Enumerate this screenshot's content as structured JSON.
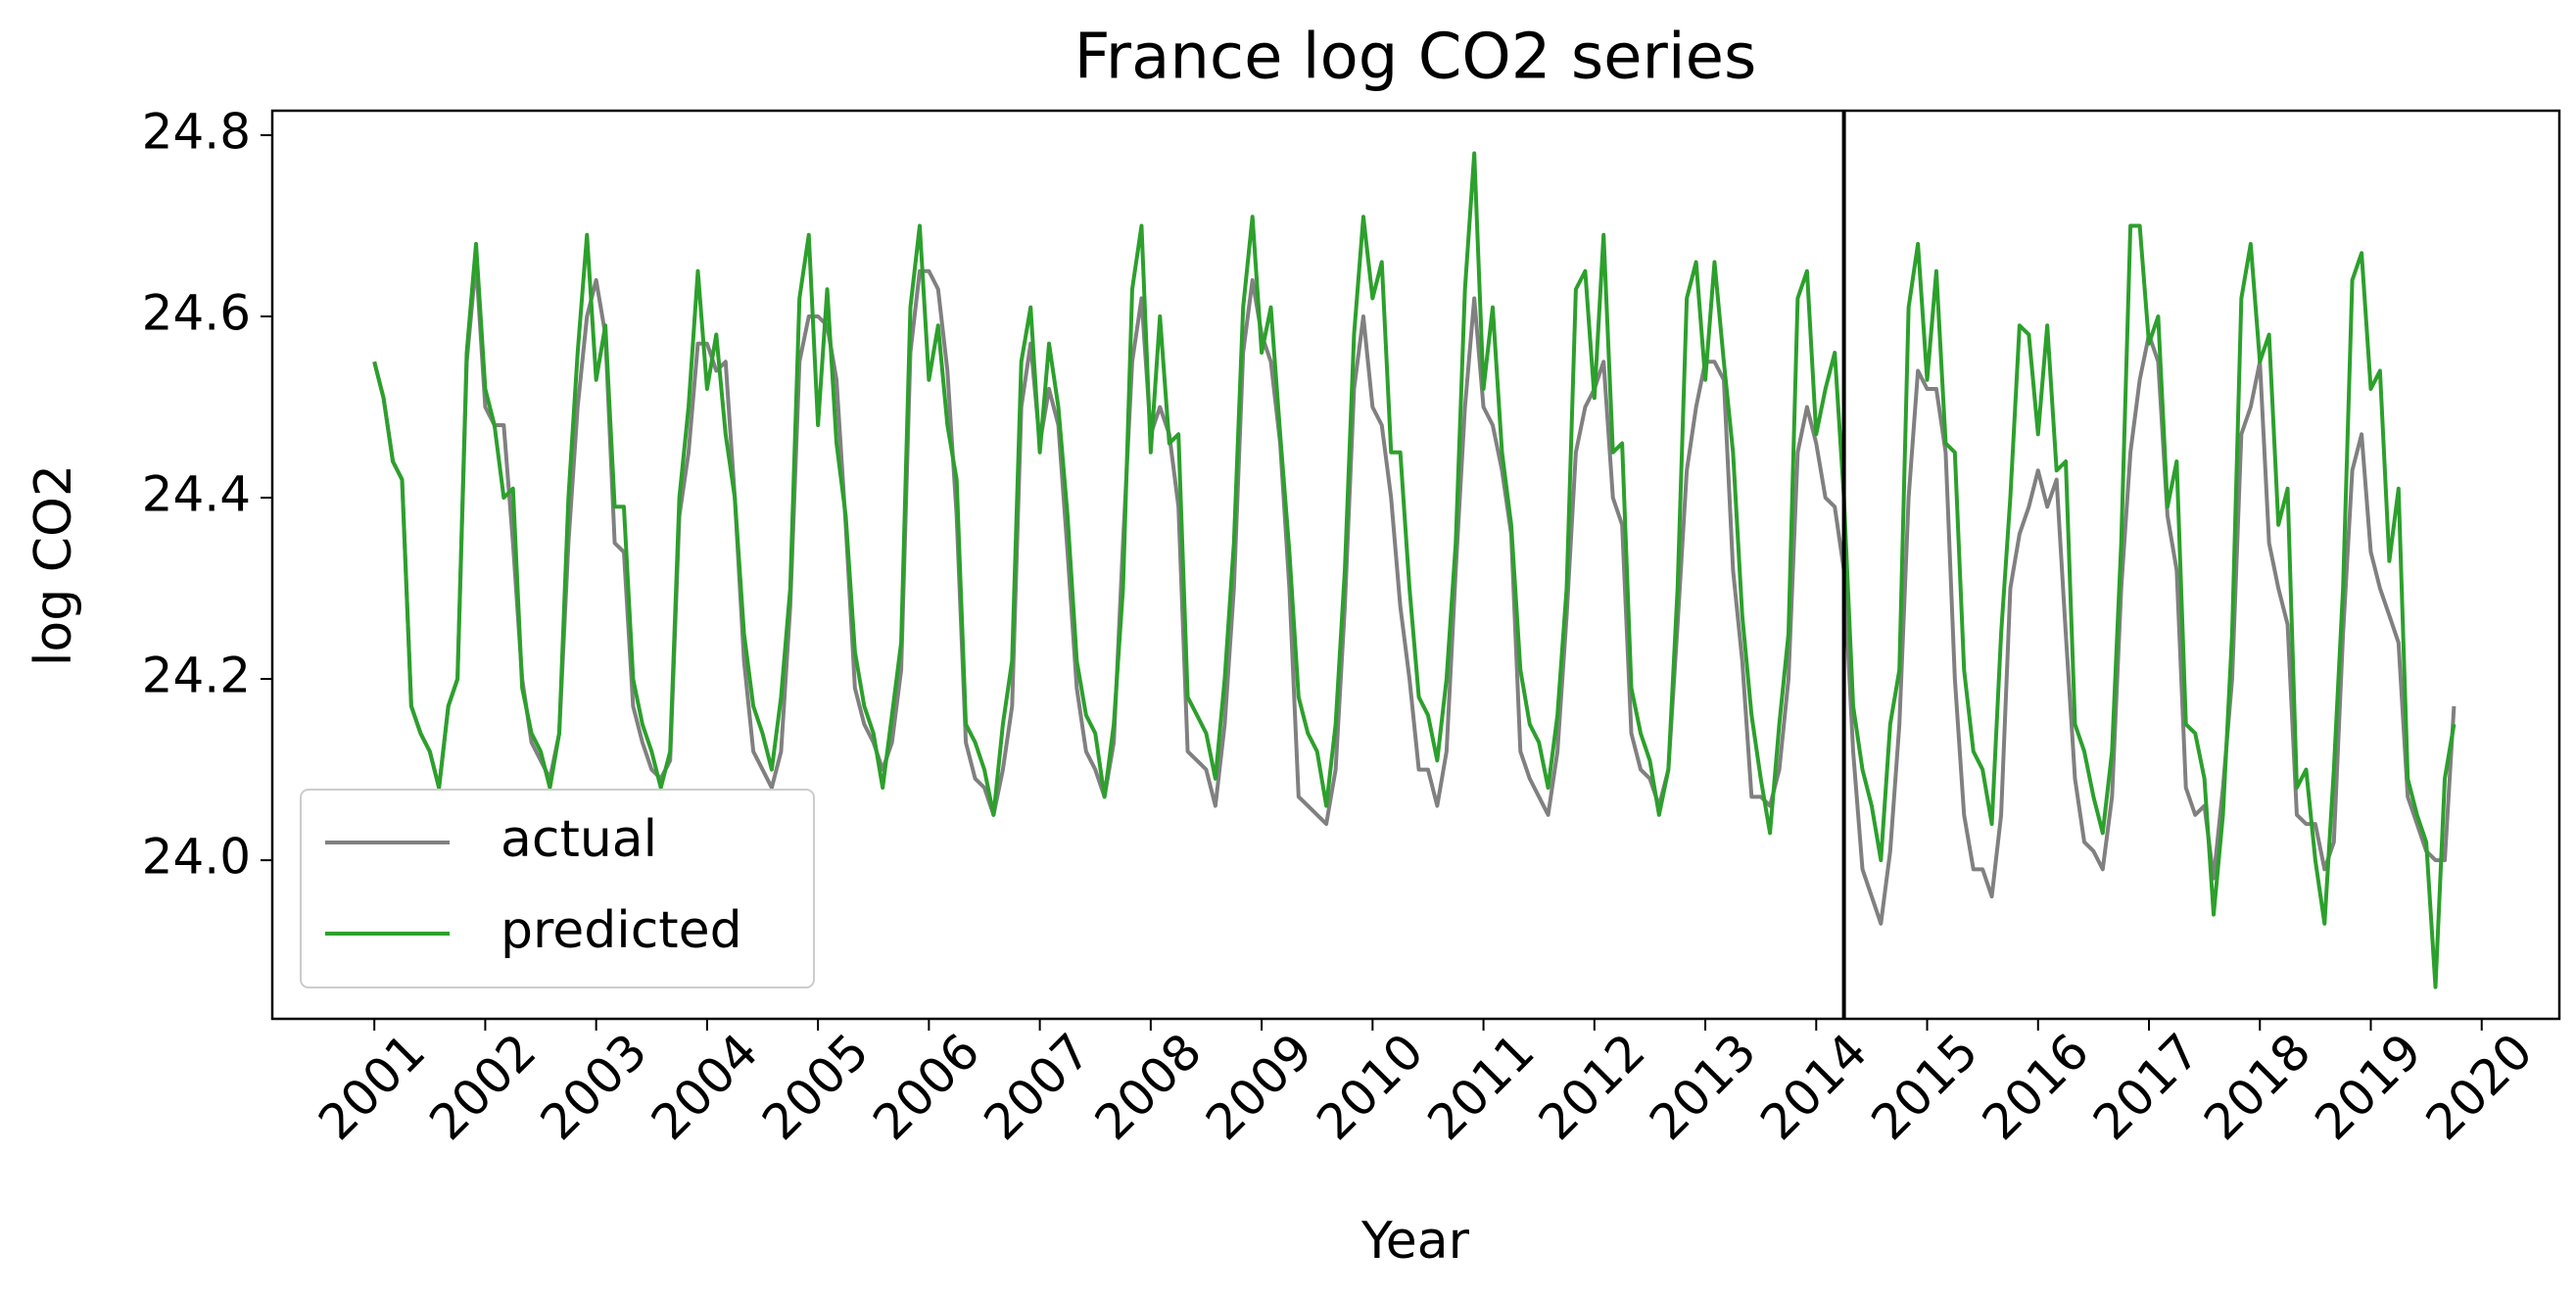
{
  "chart_data": {
    "type": "line",
    "title": "France log CO2 series",
    "x_label": "Year",
    "y_label": "log CO2",
    "x": [
      2001,
      2001.083,
      2001.167,
      2001.25,
      2001.333,
      2001.417,
      2001.5,
      2001.583,
      2001.667,
      2001.75,
      2001.833,
      2001.917,
      2002,
      2002.083,
      2002.167,
      2002.25,
      2002.333,
      2002.417,
      2002.5,
      2002.583,
      2002.667,
      2002.75,
      2002.833,
      2002.917,
      2003,
      2003.083,
      2003.167,
      2003.25,
      2003.333,
      2003.417,
      2003.5,
      2003.583,
      2003.667,
      2003.75,
      2003.833,
      2003.917,
      2004,
      2004.083,
      2004.167,
      2004.25,
      2004.333,
      2004.417,
      2004.5,
      2004.583,
      2004.667,
      2004.75,
      2004.833,
      2004.917,
      2005,
      2005.083,
      2005.167,
      2005.25,
      2005.333,
      2005.417,
      2005.5,
      2005.583,
      2005.667,
      2005.75,
      2005.833,
      2005.917,
      2006,
      2006.083,
      2006.167,
      2006.25,
      2006.333,
      2006.417,
      2006.5,
      2006.583,
      2006.667,
      2006.75,
      2006.833,
      2006.917,
      2007,
      2007.083,
      2007.167,
      2007.25,
      2007.333,
      2007.417,
      2007.5,
      2007.583,
      2007.667,
      2007.75,
      2007.833,
      2007.917,
      2008,
      2008.083,
      2008.167,
      2008.25,
      2008.333,
      2008.417,
      2008.5,
      2008.583,
      2008.667,
      2008.75,
      2008.833,
      2008.917,
      2009,
      2009.083,
      2009.167,
      2009.25,
      2009.333,
      2009.417,
      2009.5,
      2009.583,
      2009.667,
      2009.75,
      2009.833,
      2009.917,
      2010,
      2010.083,
      2010.167,
      2010.25,
      2010.333,
      2010.417,
      2010.5,
      2010.583,
      2010.667,
      2010.75,
      2010.833,
      2010.917,
      2011,
      2011.083,
      2011.167,
      2011.25,
      2011.333,
      2011.417,
      2011.5,
      2011.583,
      2011.667,
      2011.75,
      2011.833,
      2011.917,
      2012,
      2012.083,
      2012.167,
      2012.25,
      2012.333,
      2012.417,
      2012.5,
      2012.583,
      2012.667,
      2012.75,
      2012.833,
      2012.917,
      2013,
      2013.083,
      2013.167,
      2013.25,
      2013.333,
      2013.417,
      2013.5,
      2013.583,
      2013.667,
      2013.75,
      2013.833,
      2013.917,
      2014,
      2014.083,
      2014.167,
      2014.25,
      2014.333,
      2014.417,
      2014.5,
      2014.583,
      2014.667,
      2014.75,
      2014.833,
      2014.917,
      2015,
      2015.083,
      2015.167,
      2015.25,
      2015.333,
      2015.417,
      2015.5,
      2015.583,
      2015.667,
      2015.75,
      2015.833,
      2015.917,
      2016,
      2016.083,
      2016.167,
      2016.25,
      2016.333,
      2016.417,
      2016.5,
      2016.583,
      2016.667,
      2016.75,
      2016.833,
      2016.917,
      2017,
      2017.083,
      2017.167,
      2017.25,
      2017.333,
      2017.417,
      2017.5,
      2017.583,
      2017.667,
      2017.75,
      2017.833,
      2017.917,
      2018,
      2018.083,
      2018.167,
      2018.25,
      2018.333,
      2018.417,
      2018.5,
      2018.583,
      2018.667,
      2018.75,
      2018.833,
      2018.917,
      2019,
      2019.083,
      2019.167,
      2019.25,
      2019.333,
      2019.417,
      2019.5,
      2019.583,
      2019.667,
      2019.75
    ],
    "series": [
      {
        "name": "actual",
        "color": "#808080",
        "values": [
          24.55,
          24.51,
          24.44,
          24.42,
          24.17,
          24.14,
          24.12,
          24.08,
          24.17,
          24.2,
          24.55,
          24.66,
          24.5,
          24.48,
          24.48,
          24.35,
          24.2,
          24.13,
          24.11,
          24.09,
          24.14,
          24.35,
          24.5,
          24.6,
          24.64,
          24.58,
          24.35,
          24.34,
          24.17,
          24.13,
          24.1,
          24.09,
          24.11,
          24.38,
          24.45,
          24.57,
          24.57,
          24.54,
          24.55,
          24.4,
          24.22,
          24.12,
          24.1,
          24.08,
          24.12,
          24.28,
          24.55,
          24.6,
          24.6,
          24.59,
          24.53,
          24.37,
          24.19,
          24.15,
          24.13,
          24.1,
          24.13,
          24.21,
          24.56,
          24.65,
          24.65,
          24.63,
          24.54,
          24.38,
          24.13,
          24.09,
          24.08,
          24.05,
          24.1,
          24.17,
          24.5,
          24.57,
          24.46,
          24.52,
          24.48,
          24.34,
          24.19,
          24.12,
          24.1,
          24.07,
          24.13,
          24.35,
          24.55,
          24.62,
          24.47,
          24.5,
          24.47,
          24.39,
          24.12,
          24.11,
          24.1,
          24.06,
          24.15,
          24.3,
          24.56,
          24.64,
          24.58,
          24.55,
          24.46,
          24.3,
          24.07,
          24.06,
          24.05,
          24.04,
          24.1,
          24.28,
          24.52,
          24.6,
          24.5,
          24.48,
          24.4,
          24.28,
          24.2,
          24.1,
          24.1,
          24.06,
          24.12,
          24.32,
          24.5,
          24.62,
          24.5,
          24.48,
          24.43,
          24.36,
          24.12,
          24.09,
          24.07,
          24.05,
          24.12,
          24.27,
          24.45,
          24.5,
          24.52,
          24.55,
          24.4,
          24.37,
          24.14,
          24.1,
          24.09,
          24.06,
          24.1,
          24.26,
          24.43,
          24.5,
          24.55,
          24.55,
          24.53,
          24.32,
          24.22,
          24.07,
          24.07,
          24.06,
          24.1,
          24.2,
          24.45,
          24.5,
          24.46,
          24.4,
          24.39,
          24.32,
          24.12,
          23.99,
          23.96,
          23.93,
          24.01,
          24.15,
          24.4,
          24.54,
          24.52,
          24.52,
          24.45,
          24.2,
          24.05,
          23.99,
          23.99,
          23.96,
          24.05,
          24.3,
          24.36,
          24.39,
          24.43,
          24.39,
          24.42,
          24.25,
          24.09,
          24.02,
          24.01,
          23.99,
          24.07,
          24.3,
          24.45,
          24.53,
          24.58,
          24.55,
          24.38,
          24.32,
          24.08,
          24.05,
          24.06,
          23.98,
          24.08,
          24.2,
          24.47,
          24.5,
          24.55,
          24.35,
          24.3,
          24.26,
          24.05,
          24.04,
          24.04,
          23.99,
          24.02,
          24.25,
          24.43,
          24.47,
          24.34,
          24.3,
          24.27,
          24.24,
          24.07,
          24.04,
          24.01,
          24.0,
          24.0,
          24.17
        ]
      },
      {
        "name": "predicted",
        "color": "#2ca02c",
        "values": [
          24.55,
          24.51,
          24.44,
          24.42,
          24.17,
          24.14,
          24.12,
          24.08,
          24.17,
          24.2,
          24.56,
          24.68,
          24.52,
          24.48,
          24.4,
          24.41,
          24.19,
          24.14,
          24.12,
          24.08,
          24.14,
          24.4,
          24.56,
          24.69,
          24.53,
          24.59,
          24.39,
          24.39,
          24.2,
          24.15,
          24.12,
          24.08,
          24.12,
          24.4,
          24.5,
          24.65,
          24.52,
          24.58,
          24.47,
          24.4,
          24.25,
          24.17,
          24.14,
          24.1,
          24.18,
          24.3,
          24.62,
          24.69,
          24.48,
          24.63,
          24.46,
          24.38,
          24.23,
          24.17,
          24.14,
          24.08,
          24.16,
          24.24,
          24.61,
          24.7,
          24.53,
          24.59,
          24.48,
          24.42,
          24.15,
          24.13,
          24.1,
          24.05,
          24.15,
          24.22,
          24.55,
          24.61,
          24.45,
          24.57,
          24.5,
          24.38,
          24.22,
          24.16,
          24.14,
          24.07,
          24.15,
          24.3,
          24.63,
          24.7,
          24.45,
          24.6,
          24.46,
          24.47,
          24.18,
          24.16,
          24.14,
          24.09,
          24.2,
          24.35,
          24.61,
          24.71,
          24.56,
          24.61,
          24.47,
          24.34,
          24.18,
          24.14,
          24.12,
          24.06,
          24.15,
          24.32,
          24.58,
          24.71,
          24.62,
          24.66,
          24.45,
          24.45,
          24.3,
          24.18,
          24.16,
          24.11,
          24.2,
          24.35,
          24.63,
          24.78,
          24.52,
          24.61,
          24.45,
          24.37,
          24.21,
          24.15,
          24.13,
          24.08,
          24.16,
          24.3,
          24.63,
          24.65,
          24.51,
          24.69,
          24.45,
          24.46,
          24.19,
          24.14,
          24.11,
          24.05,
          24.1,
          24.3,
          24.62,
          24.66,
          24.53,
          24.66,
          24.55,
          24.45,
          24.27,
          24.16,
          24.09,
          24.03,
          24.15,
          24.25,
          24.62,
          24.65,
          24.47,
          24.52,
          24.56,
          24.4,
          24.17,
          24.1,
          24.06,
          24.0,
          24.15,
          24.21,
          24.61,
          24.68,
          24.53,
          24.65,
          24.46,
          24.45,
          24.21,
          24.12,
          24.1,
          24.04,
          24.25,
          24.4,
          24.59,
          24.58,
          24.47,
          24.59,
          24.43,
          24.44,
          24.15,
          24.12,
          24.07,
          24.03,
          24.12,
          24.35,
          24.7,
          24.7,
          24.57,
          24.6,
          24.39,
          24.44,
          24.15,
          24.14,
          24.09,
          23.94,
          24.05,
          24.25,
          24.62,
          24.68,
          24.55,
          24.58,
          24.37,
          24.41,
          24.08,
          24.1,
          24.0,
          23.93,
          24.1,
          24.3,
          24.64,
          24.67,
          24.52,
          24.54,
          24.33,
          24.41,
          24.09,
          24.05,
          24.02,
          23.86,
          24.09,
          24.15
        ]
      }
    ],
    "vline": 2014.25,
    "xlim": [
      2000.08,
      2020.7
    ],
    "ylim": [
      23.825,
      24.827
    ],
    "xticks": [
      2001,
      2002,
      2003,
      2004,
      2005,
      2006,
      2007,
      2008,
      2009,
      2010,
      2011,
      2012,
      2013,
      2014,
      2015,
      2016,
      2017,
      2018,
      2019,
      2020
    ],
    "yticks": [
      {
        "value": 24,
        "label": "24.0"
      },
      24.2,
      24.4,
      24.6,
      24.8
    ],
    "legend": "lower left"
  }
}
